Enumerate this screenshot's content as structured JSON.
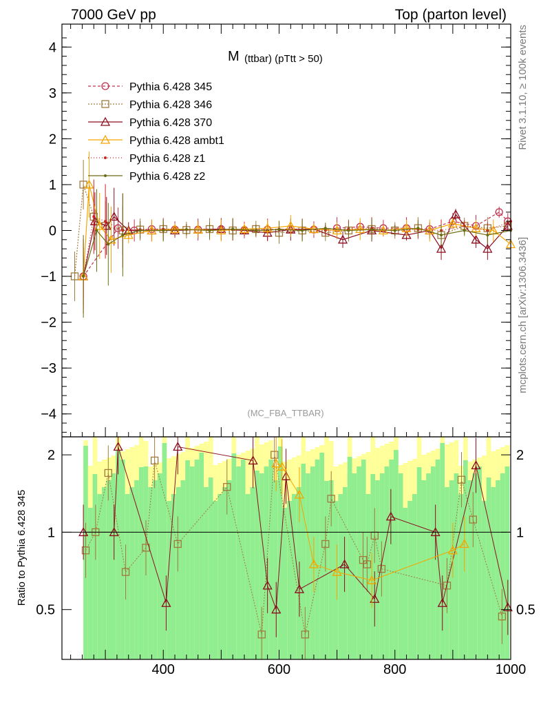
{
  "chart_data": {
    "type": "line",
    "header_left": "7000 GeV pp",
    "header_right": "Top (parton level)",
    "title_main": "M",
    "title_sub": "(ttbar) (pTtt > 50)",
    "watermark": "(MC_FBA_TTBAR)",
    "side_label_top": "Rivet 3.1.10, ≥ 100k events",
    "side_label_bottom": "mcplots.cern.ch [arXiv:1306.3436]",
    "ratio_ylabel": "Ratio to Pythia 6.428 345",
    "xlim": [
      225,
      1000
    ],
    "ylim_main": [
      -4.5,
      4.5
    ],
    "ylim_ratio": [
      0.32,
      2.35
    ],
    "x_ticks": [
      "400",
      "600",
      "800",
      "1000"
    ],
    "x_tick_values": [
      400,
      600,
      800,
      1000
    ],
    "y_ticks_main": [
      "−4",
      "−3",
      "−2",
      "−1",
      "0",
      "1",
      "2",
      "3",
      "4"
    ],
    "y_tick_values_main": [
      -4,
      -3,
      -2,
      -1,
      0,
      1,
      2,
      3,
      4
    ],
    "y_ticks_ratio": [
      "0.5",
      "1",
      "2"
    ],
    "y_tick_values_ratio": [
      0.5,
      1,
      2
    ],
    "legend": {
      "placement": "top-left",
      "entries": [
        "Pythia 6.428 345",
        "Pythia 6.428 346",
        "Pythia 6.428 370",
        "Pythia 6.428 ambt1",
        "Pythia 6.428 z1",
        "Pythia 6.428 z2"
      ]
    },
    "series": [
      {
        "name": "Pythia 6.428 345",
        "color": "#c0304f",
        "dash": "4,3",
        "marker": "circle",
        "x": [
          262,
          322,
          350,
          380,
          420,
          460,
          500,
          540,
          580,
          620,
          660,
          700,
          740,
          780,
          820,
          860,
          900,
          940,
          980,
          995
        ],
        "y": [
          -1.0,
          0.05,
          0.0,
          0.03,
          0.02,
          0.02,
          0.03,
          0.01,
          0.02,
          0.03,
          0.02,
          0.05,
          0.08,
          0.05,
          0.05,
          0.03,
          0.2,
          0.1,
          0.4,
          0.2
        ]
      },
      {
        "name": "Pythia 6.428 346",
        "color": "#a07a3c",
        "dash": "2,2",
        "marker": "square",
        "x": [
          247,
          262,
          280,
          300,
          330,
          360,
          400,
          440,
          480,
          520,
          560,
          600,
          640,
          680,
          720,
          760,
          800,
          840,
          880,
          920,
          960,
          995
        ],
        "y": [
          -1.0,
          1.0,
          0.3,
          0.1,
          0.0,
          0.02,
          0.03,
          0.01,
          0.03,
          0.0,
          0.03,
          -0.05,
          0.0,
          -0.05,
          0.0,
          0.03,
          0.0,
          0.05,
          -0.1,
          0.1,
          0.05,
          0.1
        ]
      },
      {
        "name": "Pythia 6.428 370",
        "color": "#8b0e1f",
        "dash": "",
        "marker": "triangle",
        "x": [
          262,
          282,
          302,
          315,
          340,
          380,
          420,
          460,
          500,
          540,
          580,
          620,
          660,
          710,
          760,
          820,
          860,
          880,
          905,
          940,
          960,
          995
        ],
        "y": [
          -1.0,
          0.2,
          0.1,
          0.3,
          0.0,
          0.0,
          0.0,
          0.02,
          0.03,
          0.0,
          -0.05,
          0.02,
          0.03,
          -0.2,
          0.0,
          -0.1,
          0.0,
          -0.4,
          0.35,
          -0.2,
          -0.4,
          0.1
        ]
      },
      {
        "name": "Pythia 6.428 ambt1",
        "color": "#f5a500",
        "dash": "",
        "marker": "triangle",
        "x": [
          262,
          272,
          290,
          310,
          340,
          380,
          420,
          460,
          500,
          540,
          580,
          620,
          660,
          700,
          740,
          780,
          820,
          860,
          900,
          940,
          970,
          1000
        ],
        "y": [
          -1.0,
          1.0,
          0.1,
          -0.2,
          -0.1,
          0.0,
          0.03,
          0.02,
          0.0,
          0.03,
          0.05,
          0.1,
          0.03,
          0.0,
          0.03,
          0.0,
          0.05,
          0.0,
          0.15,
          0.05,
          0.0,
          -0.3
        ]
      },
      {
        "name": "Pythia 6.428 z1",
        "color": "#d02020",
        "dash": "1,3",
        "marker": "dot",
        "x": [
          262,
          280,
          300,
          330,
          360,
          400,
          440,
          480,
          520,
          560,
          600,
          640,
          680,
          720,
          760,
          800,
          840,
          880,
          920,
          960,
          1000
        ],
        "y": [
          -1.0,
          0.3,
          0.2,
          0.0,
          0.02,
          0.03,
          0.02,
          0.0,
          0.02,
          0.0,
          0.03,
          0.02,
          0.0,
          0.03,
          0.05,
          0.0,
          0.02,
          0.0,
          0.1,
          0.0,
          0.2
        ]
      },
      {
        "name": "Pythia 6.428 z2",
        "color": "#6b6b10",
        "dash": "",
        "marker": "dot",
        "x": [
          262,
          285,
          305,
          330,
          360,
          400,
          440,
          480,
          520,
          560,
          600,
          640,
          680,
          720,
          760,
          800,
          840,
          880,
          920,
          960,
          1000
        ],
        "y": [
          -1.0,
          0.0,
          -0.3,
          -0.1,
          0.0,
          0.0,
          0.02,
          0.0,
          0.03,
          0.0,
          0.02,
          0.0,
          0.05,
          0.0,
          0.02,
          0.0,
          0.05,
          -0.1,
          0.0,
          -0.1,
          0.0
        ]
      }
    ],
    "ratio_band": {
      "colors": {
        "inner": "#90ee90",
        "outer": "#ffff99"
      },
      "x_start": 262,
      "x_end": 995,
      "step": 8
    },
    "ratio_points": [
      {
        "series": "Pythia 6.428 346",
        "x": [
          266,
          283,
          305,
          335,
          370,
          385,
          425,
          510,
          570,
          592,
          645,
          680,
          690,
          745,
          752,
          765,
          777,
          890,
          915,
          935,
          985
        ],
        "y": [
          0.85,
          1.0,
          1.7,
          0.7,
          0.87,
          1.9,
          0.9,
          1.5,
          0.4,
          2.0,
          0.4,
          0.9,
          1.35,
          0.78,
          0.75,
          0.97,
          0.72,
          0.62,
          1.6,
          1.12,
          0.47
        ]
      },
      {
        "series": "Pythia 6.428 370",
        "x": [
          262,
          315,
          322,
          405,
          425,
          555,
          580,
          595,
          612,
          635,
          713,
          765,
          793,
          870,
          882,
          940,
          995
        ],
        "y": [
          1.0,
          1.0,
          2.15,
          0.53,
          2.15,
          1.9,
          0.62,
          0.5,
          1.65,
          0.6,
          0.75,
          0.55,
          1.15,
          1.0,
          0.53,
          1.82,
          0.51
        ]
      },
      {
        "series": "Pythia 6.428 ambt1",
        "x": [
          595,
          605,
          635,
          660,
          700,
          760,
          900,
          920
        ],
        "y": [
          1.85,
          1.8,
          1.4,
          0.75,
          0.7,
          0.65,
          0.85,
          0.9
        ]
      }
    ]
  }
}
